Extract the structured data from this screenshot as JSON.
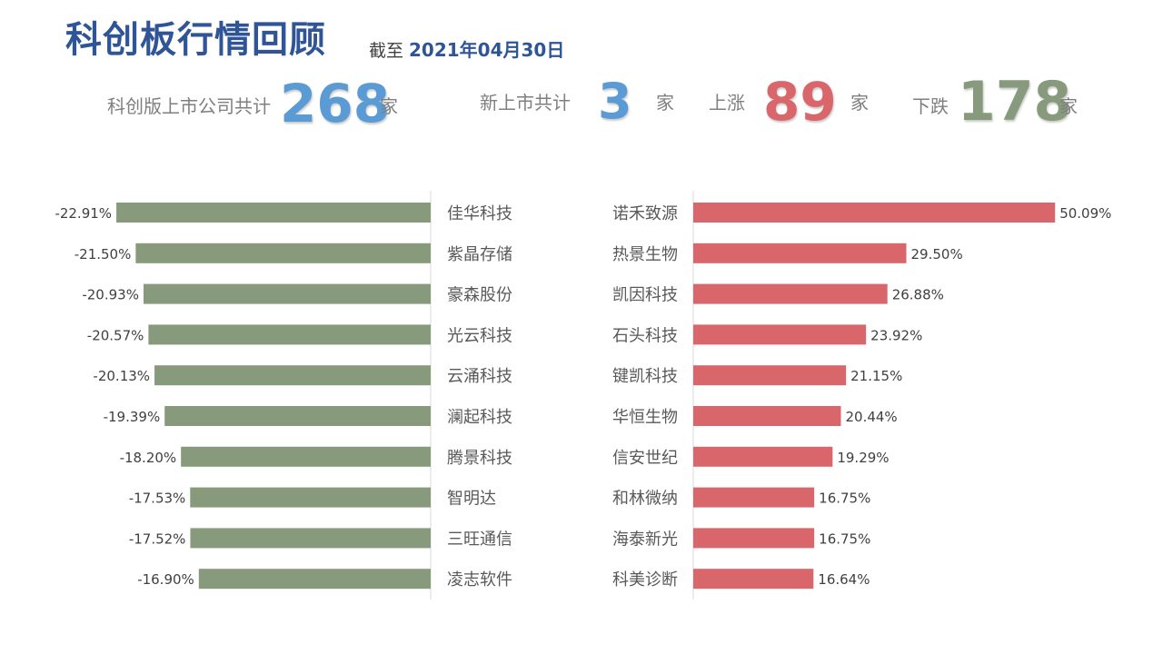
{
  "header": {
    "title": "科创板行情回顾",
    "date_prefix": "截至",
    "date": "2021年04月30日"
  },
  "stats": {
    "total_label": "科创版上市公司共计",
    "total_value": "268",
    "total_unit": "家",
    "new_label": "新上市共计",
    "new_value": "3",
    "new_unit": "家",
    "up_label": "上涨",
    "up_value": "89",
    "up_unit": "家",
    "down_label": "下跌",
    "down_value": "178",
    "down_unit": "家"
  },
  "colors": {
    "title": "#2f5597",
    "total_number": "#5b9bd5",
    "up": "#d9666b",
    "down": "#879a7b",
    "label": "#7f7f7f"
  },
  "chart_data": [
    {
      "type": "bar",
      "orientation": "horizontal",
      "direction": "leftward",
      "categories": [
        "佳华科技",
        "紫晶存储",
        "豪森股份",
        "光云科技",
        "云涌科技",
        "澜起科技",
        "腾景科技",
        "智明达",
        "三旺通信",
        "凌志软件"
      ],
      "values": [
        -22.91,
        -21.5,
        -20.93,
        -20.57,
        -20.13,
        -19.39,
        -18.2,
        -17.53,
        -17.52,
        -16.9
      ],
      "value_labels": [
        "-22.91%",
        "-21.50%",
        "-20.93%",
        "-20.57%",
        "-20.13%",
        "-19.39%",
        "-18.20%",
        "-17.53%",
        "-17.52%",
        "-16.90%"
      ],
      "color": "#879a7b",
      "unit": "%",
      "grid": false,
      "legend": "none"
    },
    {
      "type": "bar",
      "orientation": "horizontal",
      "direction": "rightward",
      "categories": [
        "诺禾致源",
        "热景生物",
        "凯因科技",
        "石头科技",
        "键凯科技",
        "华恒生物",
        "信安世纪",
        "和林微纳",
        "海泰新光",
        "科美诊断"
      ],
      "values": [
        50.09,
        29.5,
        26.88,
        23.92,
        21.15,
        20.44,
        19.29,
        16.75,
        16.75,
        16.64
      ],
      "value_labels": [
        "50.09%",
        "29.50%",
        "26.88%",
        "23.92%",
        "21.15%",
        "20.44%",
        "19.29%",
        "16.75%",
        "16.75%",
        "16.64%"
      ],
      "color": "#d9666b",
      "unit": "%",
      "grid": false,
      "legend": "none"
    }
  ]
}
